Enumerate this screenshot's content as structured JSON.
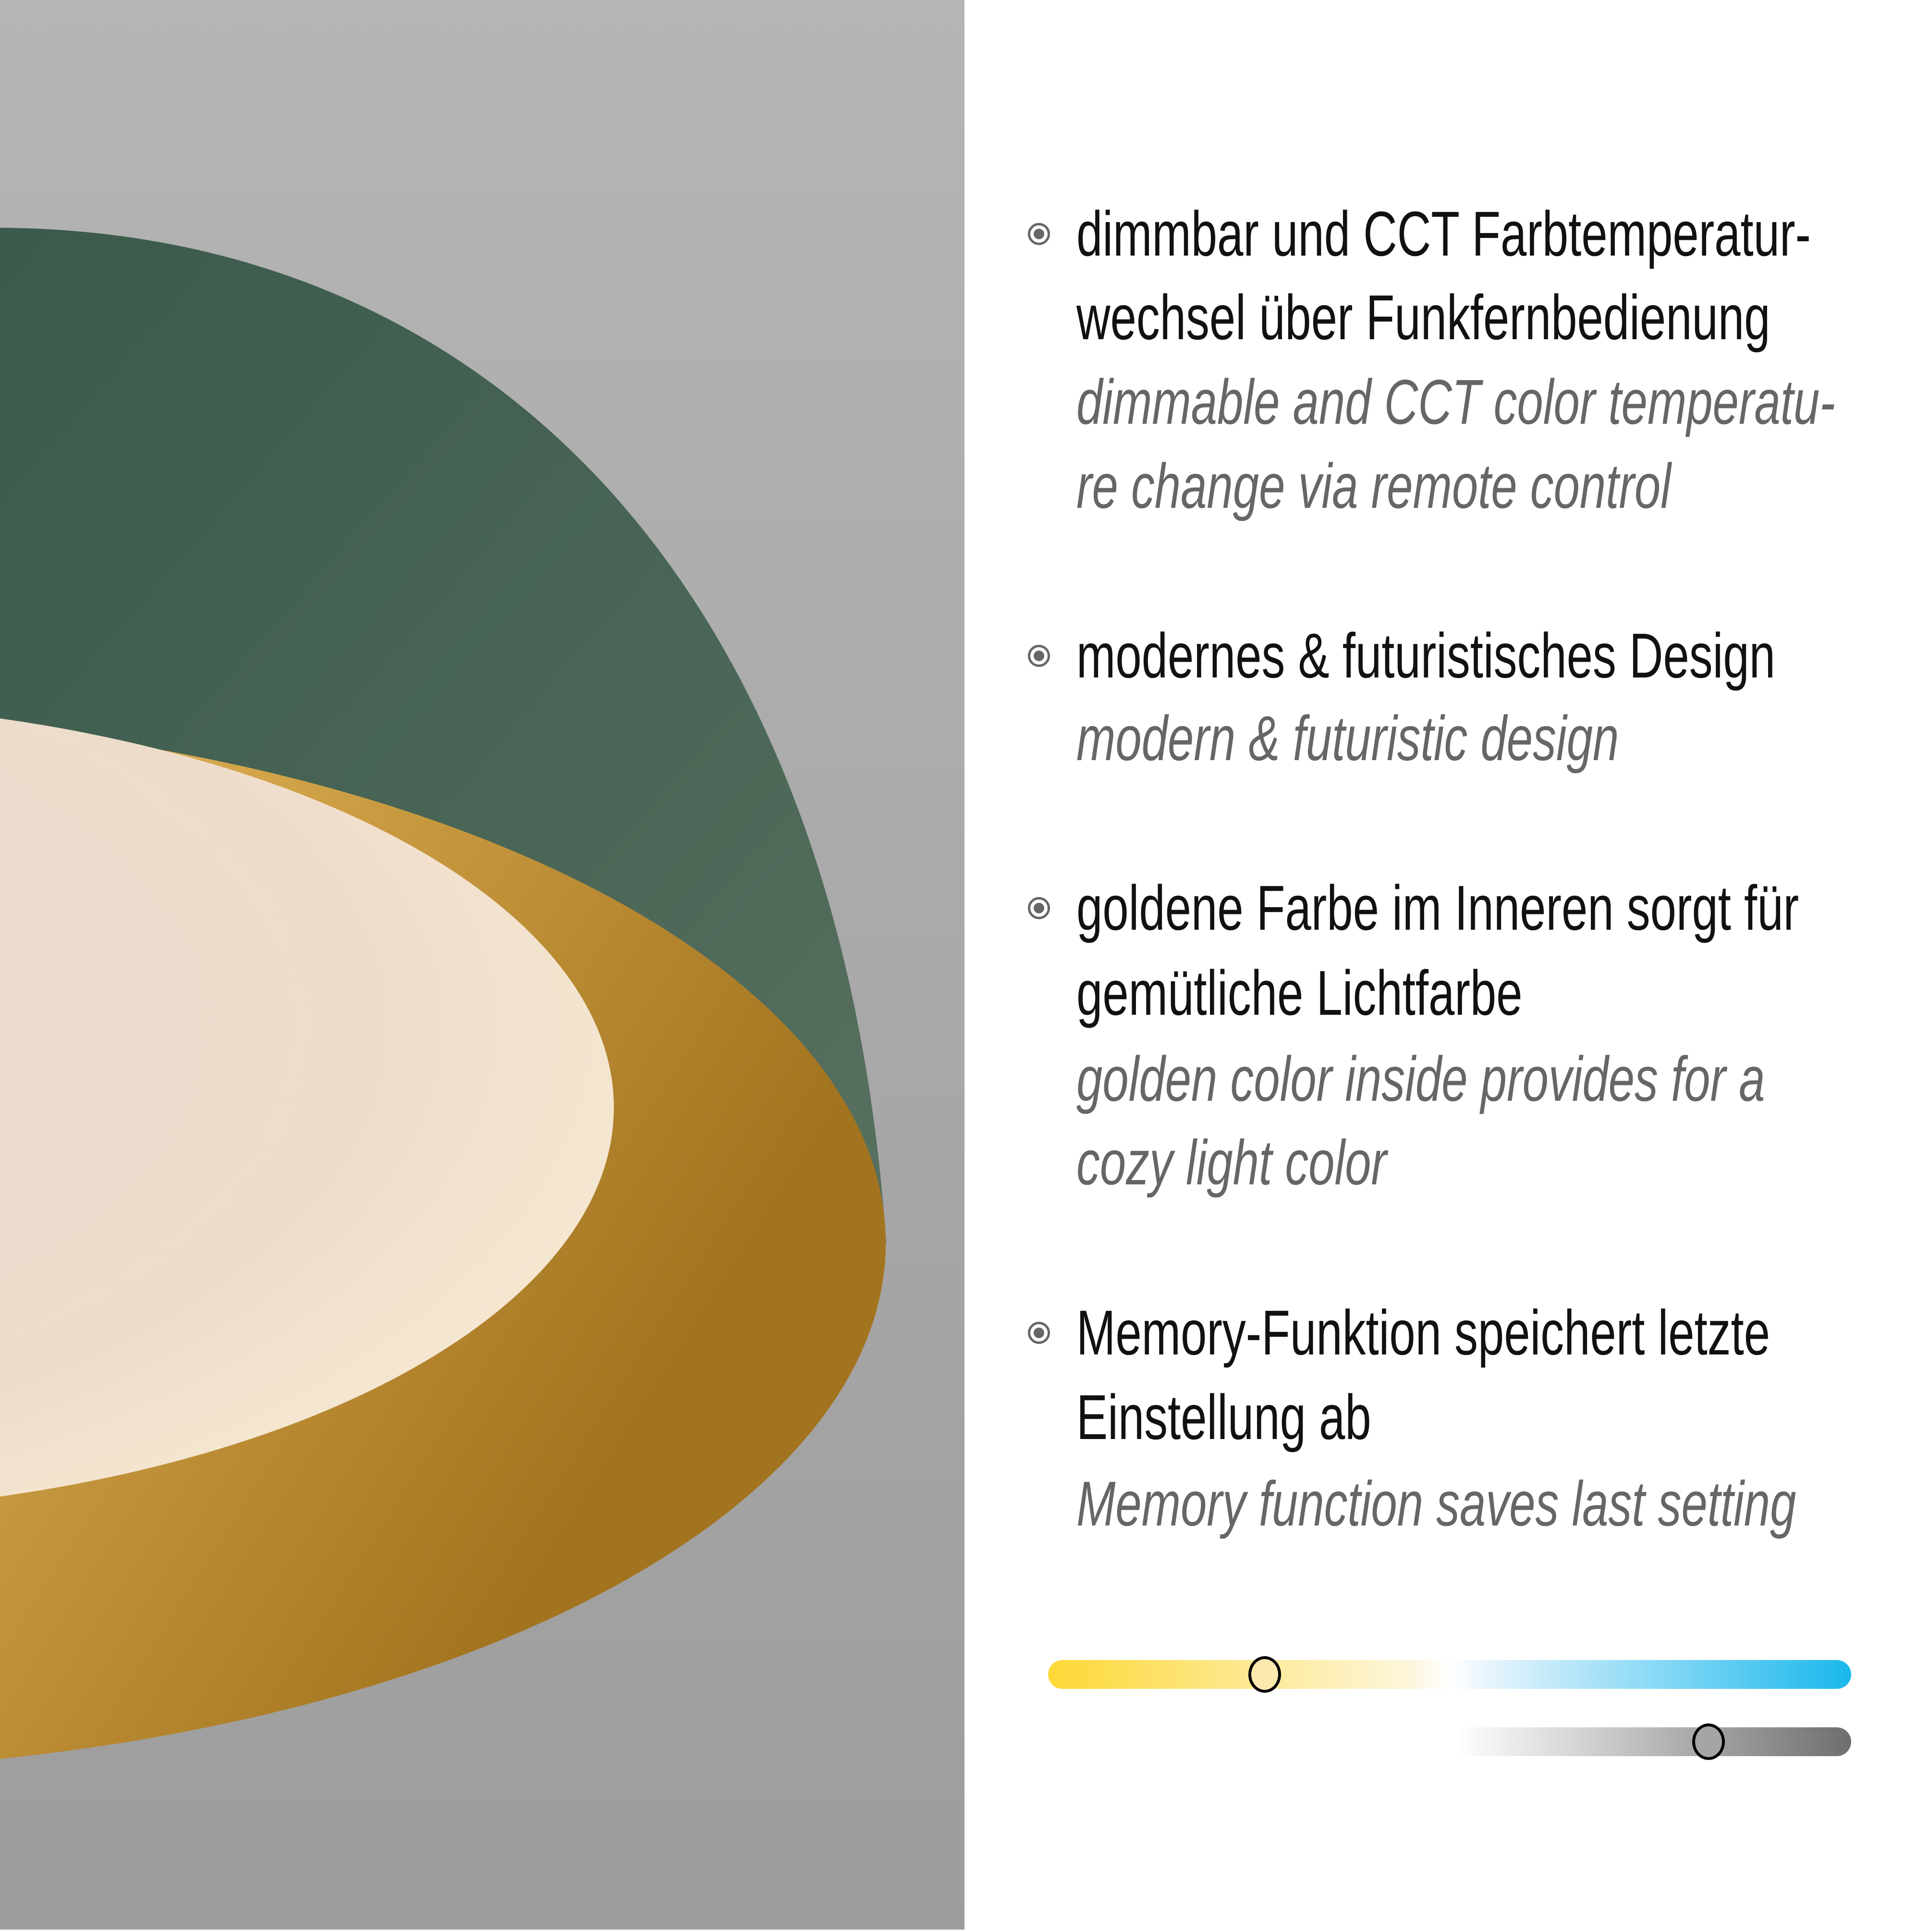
{
  "features": [
    {
      "de": [
        "dimmbar und CCT Farbtemperatur-",
        "wechsel über Funkfernbedienung"
      ],
      "en": [
        "dimmable and CCT color temperatu-",
        "re change via remote control"
      ]
    },
    {
      "de": [
        "modernes & futuristisches Design"
      ],
      "en": [
        "modern & futuristic design"
      ]
    },
    {
      "de": [
        "goldene Farbe im Inneren sorgt für",
        "gemütliche Lichtfarbe"
      ],
      "en": [
        "golden color inside provides for a",
        "cozy light color"
      ]
    },
    {
      "de": [
        "Memory-Funktion speichert letzte",
        "Einstellung ab"
      ],
      "en": [
        "Memory function saves last setting"
      ]
    }
  ],
  "bullet_icon": "radio-bullet-icon",
  "sliders": {
    "color_temperature": {
      "value": 0.27,
      "colors": [
        "#fdd835",
        "#ffffff",
        "#1ab8ec"
      ]
    },
    "brightness": {
      "value": 0.64,
      "colors": [
        "#ffffff",
        "#6e6e6e"
      ]
    }
  },
  "colors": {
    "shade_outer": "#3f5c4e",
    "shade_inner": "#d9a94a",
    "diffuser": "#f1ddd0",
    "background": "#ababab"
  }
}
